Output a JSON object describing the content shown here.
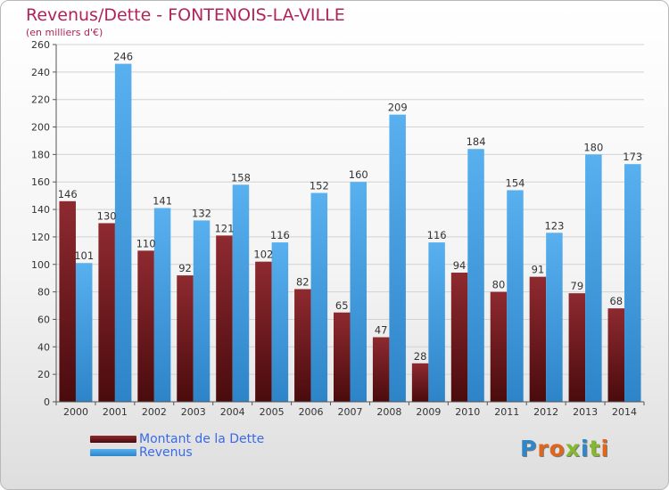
{
  "chart_data": {
    "type": "bar",
    "title": "Revenus/Dette - FONTENOIS-LA-VILLE",
    "subtitle": "(en milliers d'€)",
    "categories": [
      "2000",
      "2001",
      "2002",
      "2003",
      "2004",
      "2005",
      "2006",
      "2007",
      "2008",
      "2009",
      "2010",
      "2011",
      "2012",
      "2013",
      "2014"
    ],
    "series": [
      {
        "name": "Montant de la Dette",
        "color": "#7a1a1e",
        "values": [
          146,
          130,
          110,
          92,
          121,
          102,
          82,
          65,
          47,
          28,
          94,
          80,
          91,
          79,
          68
        ]
      },
      {
        "name": "Revenus",
        "color": "#4ca3e4",
        "values": [
          101,
          246,
          141,
          132,
          158,
          116,
          152,
          160,
          209,
          116,
          184,
          154,
          123,
          180,
          173
        ]
      }
    ],
    "yticks": [
      0,
      20,
      40,
      60,
      80,
      100,
      120,
      140,
      160,
      180,
      200,
      220,
      240,
      260
    ],
    "ylim": [
      0,
      260
    ],
    "grid": true,
    "legend_position": "bottom-left"
  },
  "branding": {
    "logo_letters": [
      {
        "ch": "P",
        "color": "#2f86c9"
      },
      {
        "ch": "r",
        "color": "#e0661c"
      },
      {
        "ch": "o",
        "color": "#e0661c"
      },
      {
        "ch": "x",
        "color": "#86b82e"
      },
      {
        "ch": "i",
        "color": "#2f86c9"
      },
      {
        "ch": "t",
        "color": "#86b82e"
      },
      {
        "ch": "i",
        "color": "#e0661c"
      }
    ]
  }
}
